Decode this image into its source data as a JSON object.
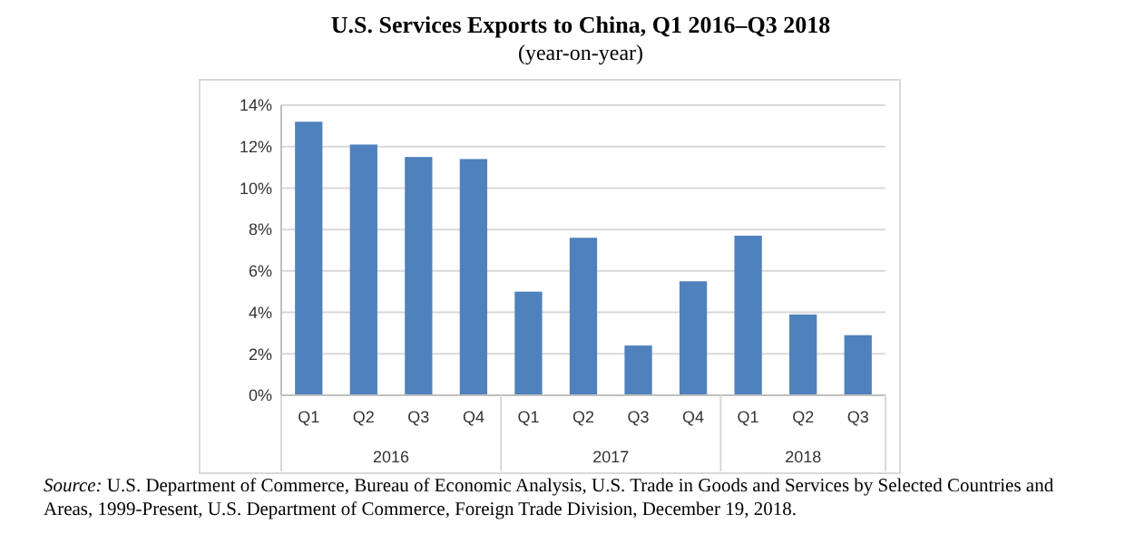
{
  "chart_data": {
    "type": "bar",
    "title": "U.S. Services Exports to China, Q1 2016–Q3 2018",
    "subtitle": "(year-on-year)",
    "categories": [
      "Q1",
      "Q2",
      "Q3",
      "Q4",
      "Q1",
      "Q2",
      "Q3",
      "Q4",
      "Q1",
      "Q2",
      "Q3"
    ],
    "values": [
      13.2,
      12.1,
      11.5,
      11.4,
      5.0,
      7.6,
      2.4,
      5.5,
      7.7,
      3.9,
      2.9
    ],
    "color": "#4f81bd",
    "ylim": [
      0,
      14
    ],
    "yticks": [
      {
        "value": 0,
        "label": "0%"
      },
      {
        "value": 2,
        "label": "2%"
      },
      {
        "value": 4,
        "label": "4%"
      },
      {
        "value": 6,
        "label": "6%"
      },
      {
        "value": 8,
        "label": "8%"
      },
      {
        "value": 10,
        "label": "10%"
      },
      {
        "value": 12,
        "label": "12%"
      },
      {
        "value": 14,
        "label": "14%"
      }
    ],
    "grid": "y",
    "annotations": [
      "2016",
      "2017",
      "2018",
      "Source: U.S. Department of Commerce, Bureau of Economic Analysis, U.S. Trade in Goods and Services by Selected Countries and Areas, 1999-Present, U.S. Department of Commerce, Foreign Trade Division, December 19, 2018."
    ]
  }
}
